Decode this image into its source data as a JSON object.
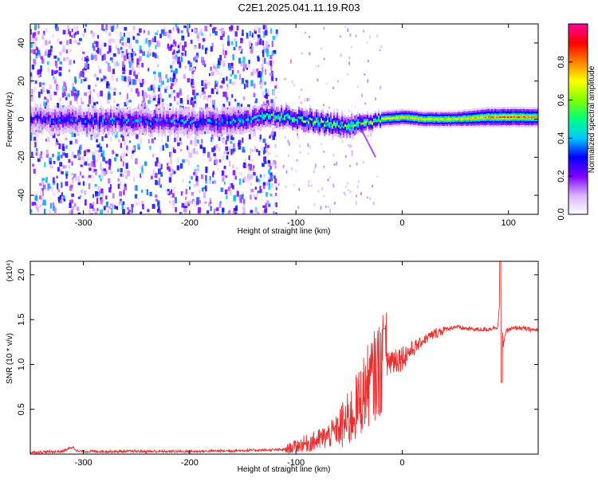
{
  "title": "C2E1.2025.041.11.19.R03",
  "chart_data": [
    {
      "type": "heatmap",
      "xlabel": "Height of straight line (km)",
      "ylabel": "Frequency (Hz)",
      "xlim": [
        -350,
        128
      ],
      "ylim": [
        -50,
        50
      ],
      "xticks": [
        -300,
        -200,
        -100,
        0,
        100
      ],
      "yticks": [
        -40,
        -20,
        0,
        20,
        40
      ],
      "colorbar": {
        "label": "Normalized spectral amplitude",
        "range": [
          0,
          1
        ],
        "ticks": [
          "0.0",
          "0.2",
          "0.4",
          "0.6",
          "0.8"
        ],
        "colors": [
          "#ffffff",
          "#d9b3ff",
          "#8000ff",
          "#0000ff",
          "#00c8ff",
          "#00ff80",
          "#80ff00",
          "#ffff00",
          "#ff8000",
          "#ff0000",
          "#ff00a0"
        ]
      },
      "band": {
        "x": [
          -350,
          -300,
          -250,
          -200,
          -150,
          -125,
          -100,
          -75,
          -50,
          -35,
          -20,
          0,
          20,
          50,
          80,
          100,
          128
        ],
        "center_hz": [
          0,
          -1,
          -1,
          -2,
          -1,
          2,
          0,
          -2,
          -4,
          -2,
          0,
          1,
          0,
          0,
          1,
          1,
          1
        ],
        "half_width_hz": [
          5,
          5,
          5,
          5,
          5,
          4,
          4,
          4,
          4,
          3,
          2.5,
          2.5,
          2.5,
          2.5,
          3,
          3,
          3
        ],
        "peak_amplitude": [
          0.3,
          0.35,
          0.35,
          0.35,
          0.4,
          0.5,
          0.55,
          0.6,
          0.6,
          0.65,
          0.7,
          0.75,
          0.75,
          0.75,
          0.8,
          0.85,
          0.8
        ]
      },
      "noise_extent_x": [
        -350,
        -125
      ]
    },
    {
      "type": "line",
      "xlabel": "Height of straight line (km)",
      "ylabel": "SNR (10 * v/v)",
      "multiplier": "(x10⁴)",
      "xlim": [
        -350,
        128
      ],
      "ylim": [
        0,
        2.15
      ],
      "xticks": [
        -300,
        -200,
        -100,
        0
      ],
      "yticks": [
        "0.5",
        "1.0",
        "1.5",
        "2.0"
      ],
      "color": "#e83030",
      "x": [
        -350,
        -320,
        -310,
        -305,
        -300,
        -250,
        -200,
        -150,
        -110,
        -100,
        -90,
        -80,
        -70,
        -60,
        -50,
        -40,
        -35,
        -30,
        -25,
        -20,
        -15,
        -10,
        0,
        10,
        20,
        30,
        40,
        50,
        60,
        70,
        80,
        90,
        93,
        95,
        97,
        100,
        110,
        120,
        128
      ],
      "y": [
        0.02,
        0.03,
        0.08,
        0.03,
        0.03,
        0.03,
        0.03,
        0.04,
        0.05,
        0.09,
        0.12,
        0.15,
        0.2,
        0.28,
        0.38,
        0.58,
        0.72,
        0.8,
        0.9,
        0.97,
        1.02,
        1.05,
        1.08,
        1.17,
        1.27,
        1.34,
        1.39,
        1.42,
        1.4,
        1.39,
        1.39,
        1.42,
        1.9,
        1.2,
        1.35,
        1.39,
        1.41,
        1.39,
        1.38
      ]
    }
  ]
}
